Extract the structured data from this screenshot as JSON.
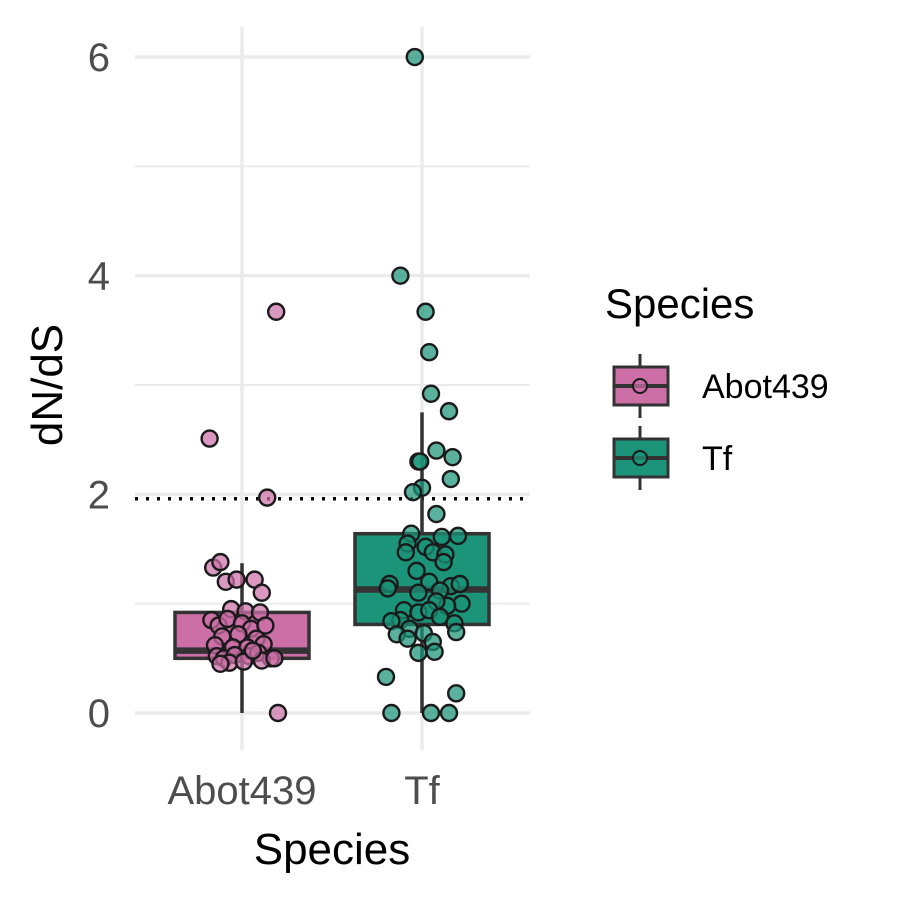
{
  "chart_data": {
    "type": "boxplot",
    "xlabel": "Species",
    "ylabel": "dN/dS",
    "ylim": [
      -0.25,
      6.2
    ],
    "yticks": [
      0,
      2,
      4,
      6
    ],
    "grid": true,
    "reference_line": {
      "y": 1.96,
      "style": "dotted"
    },
    "categories": [
      "Abot439",
      "Tf"
    ],
    "legend": {
      "title": "Species",
      "placement": "right"
    },
    "series": [
      {
        "name": "Abot439",
        "color": "#cc6fa6",
        "box": {
          "whisker_low": 0.0,
          "q1": 0.5,
          "median": 0.57,
          "q3": 0.92,
          "whisker_high": 1.37
        },
        "points": [
          [
            0.19,
            3.67
          ],
          [
            -0.18,
            2.51
          ],
          [
            0.14,
            1.97
          ],
          [
            -0.16,
            1.33
          ],
          [
            -0.12,
            1.38
          ],
          [
            -0.09,
            1.2
          ],
          [
            -0.03,
            1.22
          ],
          [
            0.07,
            1.22
          ],
          [
            0.11,
            1.1
          ],
          [
            -0.06,
            0.95
          ],
          [
            0.02,
            0.93
          ],
          [
            0.1,
            0.92
          ],
          [
            -0.17,
            0.85
          ],
          [
            -0.13,
            0.8
          ],
          [
            -0.08,
            0.86
          ],
          [
            0.0,
            0.82
          ],
          [
            0.05,
            0.77
          ],
          [
            0.13,
            0.8
          ],
          [
            -0.11,
            0.7
          ],
          [
            -0.02,
            0.72
          ],
          [
            0.08,
            0.68
          ],
          [
            -0.15,
            0.62
          ],
          [
            -0.05,
            0.6
          ],
          [
            0.03,
            0.6
          ],
          [
            0.12,
            0.63
          ],
          [
            -0.14,
            0.52
          ],
          [
            -0.1,
            0.5
          ],
          [
            -0.04,
            0.53
          ],
          [
            0.04,
            0.52
          ],
          [
            0.09,
            0.55
          ],
          [
            0.16,
            0.5
          ],
          [
            -0.07,
            0.46
          ],
          [
            0.01,
            0.47
          ],
          [
            -0.12,
            0.45
          ],
          [
            0.11,
            0.48
          ],
          [
            0.18,
            0.5
          ],
          [
            0.06,
            0.57
          ],
          [
            0.2,
            0.0
          ]
        ]
      },
      {
        "name": "Tf",
        "color": "#1b9479",
        "box": {
          "whisker_low": 0.0,
          "q1": 0.81,
          "median": 1.13,
          "q3": 1.64,
          "whisker_high": 2.75
        },
        "points": [
          [
            -0.04,
            6.0
          ],
          [
            -0.12,
            4.0
          ],
          [
            0.02,
            3.67
          ],
          [
            0.04,
            3.3
          ],
          [
            0.05,
            2.92
          ],
          [
            0.15,
            2.76
          ],
          [
            0.08,
            2.4
          ],
          [
            0.17,
            2.34
          ],
          [
            -0.02,
            2.3
          ],
          [
            -0.01,
            2.3
          ],
          [
            0.16,
            2.14
          ],
          [
            0.0,
            2.06
          ],
          [
            -0.05,
            2.02
          ],
          [
            0.08,
            1.82
          ],
          [
            -0.06,
            1.64
          ],
          [
            0.11,
            1.61
          ],
          [
            0.2,
            1.62
          ],
          [
            -0.08,
            1.55
          ],
          [
            0.02,
            1.52
          ],
          [
            -0.09,
            1.47
          ],
          [
            0.06,
            1.47
          ],
          [
            0.13,
            1.45
          ],
          [
            0.12,
            1.38
          ],
          [
            -0.03,
            1.3
          ],
          [
            -0.18,
            1.18
          ],
          [
            -0.19,
            1.14
          ],
          [
            0.04,
            1.2
          ],
          [
            0.16,
            1.16
          ],
          [
            0.21,
            1.18
          ],
          [
            -0.02,
            1.1
          ],
          [
            0.1,
            1.12
          ],
          [
            0.22,
            1.0
          ],
          [
            0.14,
            0.98
          ],
          [
            0.08,
            1.02
          ],
          [
            -0.1,
            0.94
          ],
          [
            -0.02,
            0.92
          ],
          [
            0.04,
            0.94
          ],
          [
            -0.12,
            0.85
          ],
          [
            -0.17,
            0.84
          ],
          [
            0.1,
            0.88
          ],
          [
            -0.07,
            0.77
          ],
          [
            0.18,
            0.82
          ],
          [
            -0.14,
            0.72
          ],
          [
            0.01,
            0.73
          ],
          [
            0.19,
            0.74
          ],
          [
            -0.08,
            0.68
          ],
          [
            0.06,
            0.65
          ],
          [
            0.07,
            0.56
          ],
          [
            -0.02,
            0.55
          ],
          [
            -0.2,
            0.33
          ],
          [
            0.19,
            0.18
          ],
          [
            -0.17,
            0.0
          ],
          [
            0.05,
            0.0
          ],
          [
            0.15,
            0.0
          ]
        ]
      }
    ]
  }
}
